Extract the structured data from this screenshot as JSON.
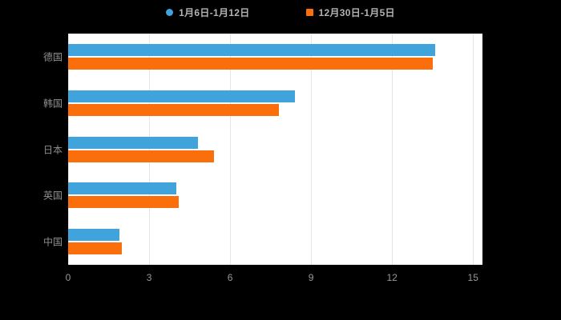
{
  "chart_data": {
    "type": "bar",
    "orientation": "horizontal",
    "title": "",
    "categories": [
      "德国",
      "韩国",
      "日本",
      "英国",
      "中国"
    ],
    "series": [
      {
        "name": "1月6日-1月12日",
        "color": "#41A3DC",
        "values": [
          13.6,
          8.4,
          4.8,
          4.0,
          1.9
        ]
      },
      {
        "name": "12月30日-1月5日",
        "color": "#FA6E0B",
        "values": [
          13.5,
          7.8,
          5.4,
          4.1,
          2.0
        ]
      }
    ],
    "xlabel": "",
    "ylabel": "",
    "xlim": [
      0,
      15.35
    ],
    "ticks": [
      0,
      3,
      6,
      9,
      12,
      15
    ],
    "grid": true,
    "legend_position": "top",
    "plot_background": "#ffffff",
    "page_background": "#000000",
    "gridline_color": "#e6e6e6",
    "axis_label_color": "#999999",
    "category_label_color": "#8f8f8f",
    "legend_text_color": "#b3b3b3"
  }
}
